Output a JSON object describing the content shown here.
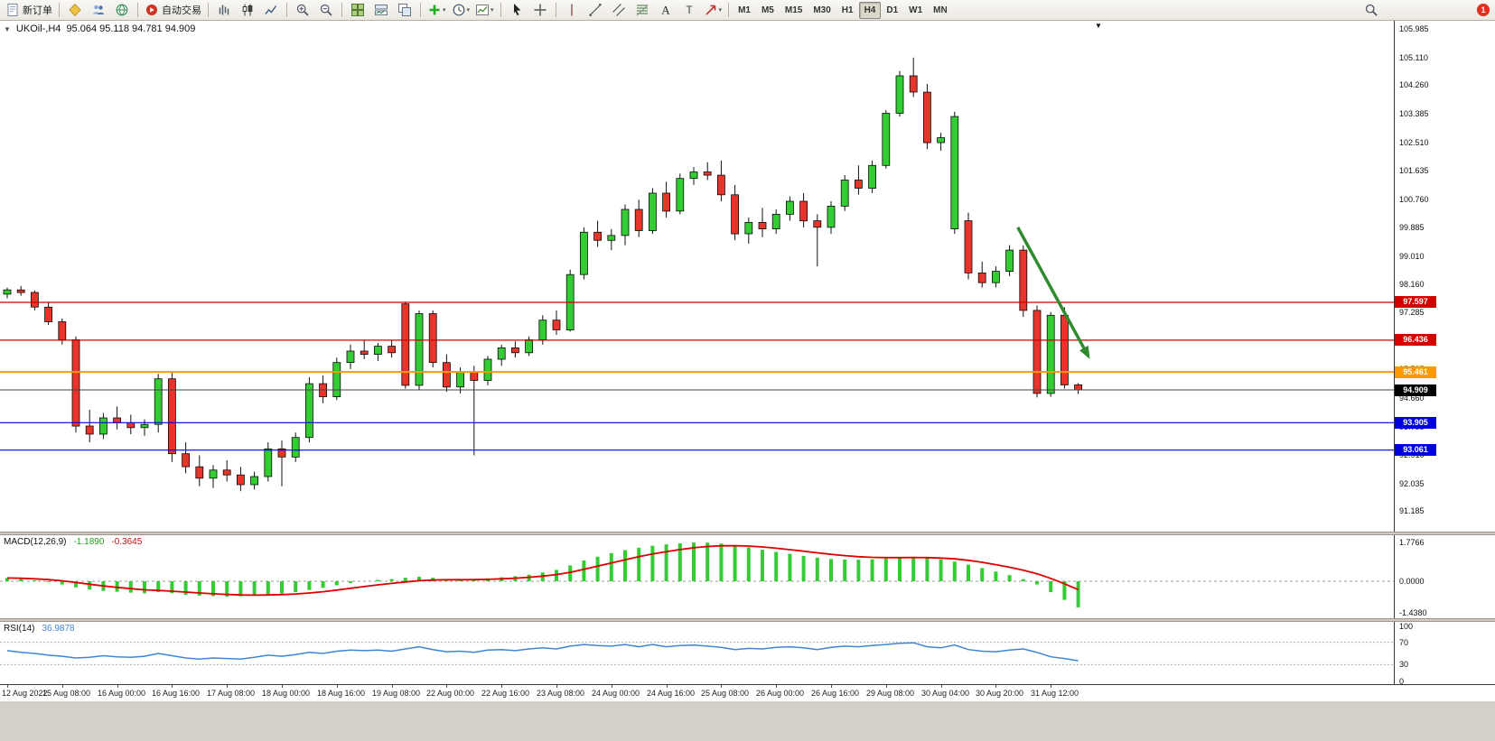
{
  "toolbar": {
    "new_order": "新订单",
    "auto_trading": "自动交易",
    "left_icons": [
      "mql-icon",
      "profiles-icon",
      "web-terminal-icon"
    ],
    "chart_icons": [
      "bar-chart-icon",
      "candlestick-chart-icon",
      "line-chart-icon"
    ],
    "zoom_icons": [
      "zoom-in-icon",
      "zoom-out-icon"
    ],
    "window_icons": [
      "tile-windows-icon",
      "indicator-window-icon",
      "navigator-icon"
    ],
    "dropdown_icons": [
      "add-indicator-icon",
      "periods-icon",
      "templates-icon"
    ],
    "tool_icons": [
      "cursor-icon",
      "crosshair-icon",
      "vertical-line-icon",
      "trendline-icon",
      "channel-icon",
      "fibonacci-icon",
      "text-icon",
      "text-label-icon",
      "arrows-icon"
    ],
    "timeframes": [
      "M1",
      "M5",
      "M15",
      "M30",
      "H1",
      "H4",
      "D1",
      "W1",
      "MN"
    ],
    "active_timeframe": "H4",
    "caret": "▾",
    "notification_count": "1"
  },
  "chart": {
    "collapse_icon": "▼",
    "symbol_tf": "UKOil-,H4",
    "ohlc_text": "95.064 95.118 94.781 94.909",
    "shift_marker_icon": "▼"
  },
  "colors": {
    "up": "#33cc33",
    "down": "#e8352b",
    "wick": "#111111",
    "macd_histogram": "#33cc33",
    "macd_signal": "#dd0000",
    "rsi_line": "#3f85d6",
    "arrow": "#2e8b2e"
  },
  "chart_data": {
    "type": "candlestick",
    "symbol": "UKOil-",
    "timeframe": "H4",
    "last_ohlc": {
      "open": 95.064,
      "high": 95.118,
      "low": 94.781,
      "close": 94.909
    },
    "price_ticks": [
      "105.985",
      "105.110",
      "104.260",
      "103.385",
      "102.510",
      "101.635",
      "100.760",
      "99.885",
      "99.010",
      "98.160",
      "97.285",
      "96.410",
      "95.535",
      "94.660",
      "93.785",
      "92.910",
      "92.035",
      "91.185"
    ],
    "hlines": [
      {
        "label": "97.597",
        "price": 97.597,
        "color": "#d40000",
        "width": 1.2,
        "badge": "#d40000"
      },
      {
        "label": "96.436",
        "price": 96.436,
        "color": "#d40000",
        "width": 1.2,
        "badge": "#d40000"
      },
      {
        "label": "95.461",
        "price": 95.461,
        "color": "#ff9900",
        "width": 2,
        "badge": "#ff9900"
      },
      {
        "label": "94.909",
        "price": 94.909,
        "color": "#444444",
        "width": 1,
        "badge": "#000000"
      },
      {
        "label": "93.905",
        "price": 93.905,
        "color": "#0000dd",
        "width": 1.2,
        "badge": "#0000dd"
      },
      {
        "label": "93.061",
        "price": 93.061,
        "color": "#0000dd",
        "width": 1.2,
        "badge": "#0000dd"
      }
    ],
    "candles": [
      [
        97.85,
        98.05,
        97.72,
        97.98
      ],
      [
        97.98,
        98.1,
        97.8,
        97.9
      ],
      [
        97.9,
        97.96,
        97.35,
        97.45
      ],
      [
        97.45,
        97.6,
        96.9,
        97.0
      ],
      [
        97.0,
        97.1,
        96.3,
        96.45
      ],
      [
        96.45,
        96.55,
        93.6,
        93.8
      ],
      [
        93.8,
        94.3,
        93.3,
        93.55
      ],
      [
        93.55,
        94.2,
        93.4,
        94.05
      ],
      [
        94.05,
        94.4,
        93.7,
        93.9
      ],
      [
        93.9,
        94.15,
        93.55,
        93.75
      ],
      [
        93.75,
        94.0,
        93.5,
        93.85
      ],
      [
        93.85,
        95.4,
        93.6,
        95.25
      ],
      [
        95.25,
        95.45,
        92.7,
        92.95
      ],
      [
        92.95,
        93.3,
        92.35,
        92.55
      ],
      [
        92.55,
        92.9,
        91.95,
        92.2
      ],
      [
        92.2,
        92.6,
        91.9,
        92.45
      ],
      [
        92.45,
        92.75,
        92.1,
        92.3
      ],
      [
        92.3,
        92.55,
        91.8,
        92.0
      ],
      [
        92.0,
        92.4,
        91.85,
        92.25
      ],
      [
        92.25,
        93.3,
        92.1,
        93.1
      ],
      [
        93.1,
        93.35,
        91.95,
        92.85
      ],
      [
        92.85,
        93.6,
        92.7,
        93.45
      ],
      [
        93.45,
        95.3,
        93.3,
        95.1
      ],
      [
        95.1,
        95.35,
        94.5,
        94.7
      ],
      [
        94.7,
        95.9,
        94.6,
        95.75
      ],
      [
        95.75,
        96.3,
        95.55,
        96.1
      ],
      [
        96.1,
        96.45,
        95.85,
        96.0
      ],
      [
        96.0,
        96.35,
        95.8,
        96.25
      ],
      [
        96.25,
        96.45,
        95.9,
        96.05
      ],
      [
        97.55,
        97.62,
        94.95,
        95.05
      ],
      [
        95.05,
        97.35,
        94.9,
        97.25
      ],
      [
        97.25,
        97.35,
        95.6,
        95.75
      ],
      [
        95.75,
        96.0,
        94.85,
        95.0
      ],
      [
        95.0,
        95.6,
        94.8,
        95.45
      ],
      [
        95.45,
        95.65,
        92.9,
        95.2
      ],
      [
        95.2,
        95.95,
        95.05,
        95.85
      ],
      [
        95.85,
        96.3,
        95.65,
        96.2
      ],
      [
        96.2,
        96.4,
        95.9,
        96.05
      ],
      [
        96.05,
        96.55,
        95.95,
        96.45
      ],
      [
        96.45,
        97.2,
        96.3,
        97.05
      ],
      [
        97.05,
        97.35,
        96.6,
        96.75
      ],
      [
        96.75,
        98.6,
        96.7,
        98.45
      ],
      [
        98.45,
        99.9,
        98.3,
        99.75
      ],
      [
        99.75,
        100.1,
        99.3,
        99.5
      ],
      [
        99.5,
        99.85,
        99.2,
        99.65
      ],
      [
        99.65,
        100.6,
        99.35,
        100.45
      ],
      [
        100.45,
        100.75,
        99.6,
        99.8
      ],
      [
        99.8,
        101.1,
        99.7,
        100.95
      ],
      [
        100.95,
        101.3,
        100.2,
        100.4
      ],
      [
        100.4,
        101.55,
        100.3,
        101.4
      ],
      [
        101.4,
        101.75,
        101.2,
        101.6
      ],
      [
        101.6,
        101.9,
        101.35,
        101.5
      ],
      [
        101.5,
        101.95,
        100.7,
        100.9
      ],
      [
        100.9,
        101.2,
        99.5,
        99.7
      ],
      [
        99.7,
        100.2,
        99.4,
        100.05
      ],
      [
        100.05,
        100.5,
        99.6,
        99.85
      ],
      [
        99.85,
        100.45,
        99.7,
        100.3
      ],
      [
        100.3,
        100.85,
        100.1,
        100.7
      ],
      [
        100.7,
        100.95,
        99.9,
        100.1
      ],
      [
        100.1,
        100.3,
        98.7,
        99.9
      ],
      [
        99.9,
        100.7,
        99.7,
        100.55
      ],
      [
        100.55,
        101.5,
        100.4,
        101.35
      ],
      [
        101.35,
        101.8,
        100.9,
        101.1
      ],
      [
        101.1,
        101.95,
        100.95,
        101.8
      ],
      [
        101.8,
        103.5,
        101.7,
        103.4
      ],
      [
        103.4,
        104.7,
        103.3,
        104.55
      ],
      [
        104.55,
        105.11,
        103.9,
        104.05
      ],
      [
        104.05,
        104.3,
        102.3,
        102.5
      ],
      [
        102.5,
        102.8,
        102.25,
        102.65
      ],
      [
        99.85,
        103.45,
        99.7,
        103.3
      ],
      [
        100.1,
        100.35,
        98.3,
        98.5
      ],
      [
        98.5,
        98.85,
        98.05,
        98.2
      ],
      [
        98.2,
        98.7,
        98.05,
        98.55
      ],
      [
        98.55,
        99.35,
        98.4,
        99.2
      ],
      [
        99.2,
        99.35,
        97.15,
        97.35
      ],
      [
        97.35,
        97.5,
        94.68,
        94.8
      ],
      [
        94.8,
        97.3,
        94.7,
        97.2
      ],
      [
        97.2,
        97.45,
        94.95,
        95.06
      ],
      [
        95.064,
        95.118,
        94.781,
        94.909
      ]
    ],
    "time_labels": [
      "12 Aug 2022",
      "15 Aug 08:00",
      "16 Aug 00:00",
      "16 Aug 16:00",
      "17 Aug 08:00",
      "18 Aug 00:00",
      "18 Aug 16:00",
      "19 Aug 08:00",
      "22 Aug 00:00",
      "22 Aug 16:00",
      "23 Aug 08:00",
      "24 Aug 00:00",
      "24 Aug 16:00",
      "25 Aug 08:00",
      "26 Aug 00:00",
      "26 Aug 16:00",
      "29 Aug 08:00",
      "30 Aug 04:00",
      "30 Aug 20:00",
      "31 Aug 12:00"
    ],
    "time_label_step": 4,
    "arrow": {
      "from_index": 73.6,
      "from_price": 99.9,
      "to_index": 78.6,
      "to_price": 96.05,
      "color": "#2e8b2e"
    },
    "macd": {
      "label": "MACD(12,26,9)",
      "value_main": "-1.1890",
      "value_signal": "-0.3645",
      "scale": [
        "1.7766",
        "0.0000",
        "-1.4380"
      ],
      "histogram": [
        0.15,
        0.1,
        0.04,
        -0.04,
        -0.15,
        -0.28,
        -0.38,
        -0.44,
        -0.48,
        -0.52,
        -0.55,
        -0.5,
        -0.55,
        -0.62,
        -0.66,
        -0.68,
        -0.7,
        -0.69,
        -0.66,
        -0.61,
        -0.56,
        -0.5,
        -0.4,
        -0.3,
        -0.18,
        -0.08,
        0.0,
        0.06,
        0.1,
        0.16,
        0.2,
        0.16,
        0.1,
        0.07,
        0.09,
        0.13,
        0.18,
        0.23,
        0.3,
        0.4,
        0.52,
        0.72,
        0.95,
        1.12,
        1.28,
        1.42,
        1.53,
        1.62,
        1.68,
        1.73,
        1.77,
        1.76,
        1.72,
        1.64,
        1.55,
        1.44,
        1.34,
        1.25,
        1.16,
        1.08,
        1.02,
        0.99,
        0.98,
        1.0,
        1.04,
        1.08,
        1.1,
        1.07,
        1.0,
        0.9,
        0.76,
        0.6,
        0.44,
        0.28,
        0.1,
        -0.15,
        -0.5,
        -0.85,
        -1.19
      ]
    },
    "rsi": {
      "label": "RSI(14)",
      "value": "36.9878",
      "scale": [
        "100",
        "70",
        "30",
        "0"
      ],
      "levels": [
        70,
        30
      ],
      "values": [
        55,
        52,
        50,
        47,
        45,
        42,
        43,
        46,
        44,
        43,
        45,
        50,
        46,
        42,
        40,
        42,
        41,
        40,
        43,
        47,
        45,
        48,
        52,
        50,
        54,
        56,
        55,
        56,
        54,
        58,
        62,
        57,
        53,
        54,
        52,
        56,
        57,
        55,
        58,
        60,
        58,
        63,
        66,
        64,
        63,
        66,
        62,
        66,
        62,
        64,
        65,
        63,
        61,
        57,
        59,
        58,
        61,
        62,
        60,
        57,
        61,
        63,
        62,
        64,
        66,
        68,
        69,
        62,
        60,
        65,
        57,
        54,
        53,
        56,
        58,
        52,
        44,
        41,
        37
      ]
    }
  }
}
